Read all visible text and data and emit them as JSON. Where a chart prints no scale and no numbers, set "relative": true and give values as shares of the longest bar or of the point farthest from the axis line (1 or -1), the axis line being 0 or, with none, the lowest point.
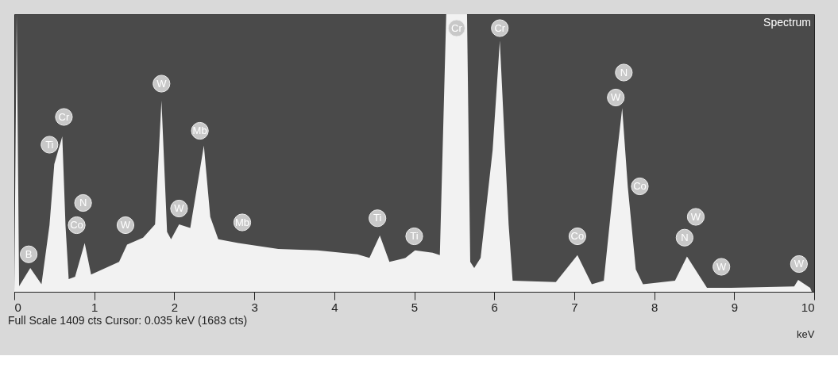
{
  "chart_data": {
    "type": "area",
    "relative": true,
    "xlabel": "keV",
    "xlim": [
      0,
      10
    ],
    "xticks": [
      0,
      1,
      2,
      3,
      4,
      5,
      6,
      7,
      8,
      9,
      10
    ],
    "grid": false,
    "x": [
      0.0,
      0.03,
      0.06,
      0.2,
      0.34,
      0.44,
      0.5,
      0.54,
      0.6,
      0.64,
      0.68,
      0.76,
      0.88,
      0.96,
      1.31,
      1.41,
      1.61,
      1.76,
      1.84,
      1.91,
      1.96,
      2.06,
      2.2,
      2.37,
      2.45,
      2.55,
      2.8,
      3.3,
      3.79,
      4.29,
      4.44,
      4.57,
      4.69,
      4.89,
      5.01,
      5.23,
      5.32,
      5.4,
      5.66,
      5.7,
      5.75,
      5.83,
      5.98,
      6.07,
      6.18,
      6.23,
      6.77,
      7.04,
      7.22,
      7.37,
      7.52,
      7.6,
      7.67,
      7.77,
      7.86,
      8.26,
      8.41,
      8.66,
      8.96,
      9.75,
      9.8,
      9.95,
      9.97
    ],
    "series": [
      {
        "color": "#f2f2f2",
        "values": [
          0,
          1,
          0.02,
          0.086,
          0.027,
          0.24,
          0.46,
          0.5,
          0.56,
          0.24,
          0.046,
          0.054,
          0.176,
          0.062,
          0.108,
          0.17,
          0.195,
          0.243,
          0.689,
          0.216,
          0.189,
          0.243,
          0.23,
          0.527,
          0.27,
          0.189,
          0.176,
          0.154,
          0.149,
          0.135,
          0.122,
          0.203,
          0.108,
          0.122,
          0.149,
          0.141,
          0.132,
          1,
          1,
          0.108,
          0.086,
          0.122,
          0.51,
          0.905,
          0.243,
          0.04,
          0.035,
          0.132,
          0.027,
          0.04,
          0.46,
          0.662,
          0.378,
          0.081,
          0.027,
          0.04,
          0.127,
          0.014,
          0.014,
          0.019,
          0.043,
          0.014,
          0
        ]
      }
    ],
    "annotations": [
      "Spectrum",
      "Full Scale  1409 cts  Cursor: 0.035 keV (1683 cts)",
      {
        "text": "B",
        "x": 0.18,
        "y": 0.135
      },
      {
        "text": "Ti",
        "x": 0.44,
        "y": 0.53
      },
      {
        "text": "Cr",
        "x": 0.62,
        "y": 0.63
      },
      {
        "text": "N",
        "x": 0.86,
        "y": 0.32
      },
      {
        "text": "Co",
        "x": 0.78,
        "y": 0.24
      },
      {
        "text": "W",
        "x": 1.39,
        "y": 0.24
      },
      {
        "text": "W",
        "x": 1.84,
        "y": 0.75
      },
      {
        "text": "W",
        "x": 2.06,
        "y": 0.3
      },
      {
        "text": "Mb",
        "x": 2.32,
        "y": 0.58
      },
      {
        "text": "Mb",
        "x": 2.85,
        "y": 0.25
      },
      {
        "text": "Ti",
        "x": 4.54,
        "y": 0.265
      },
      {
        "text": "Ti",
        "x": 5.0,
        "y": 0.2
      },
      {
        "text": "Cr",
        "x": 5.53,
        "y": 0.95
      },
      {
        "text": "Cr",
        "x": 6.07,
        "y": 0.95
      },
      {
        "text": "N",
        "x": 7.62,
        "y": 0.79
      },
      {
        "text": "W",
        "x": 7.52,
        "y": 0.7
      },
      {
        "text": "Co",
        "x": 7.82,
        "y": 0.38
      },
      {
        "text": "Co",
        "x": 7.04,
        "y": 0.2
      },
      {
        "text": "W",
        "x": 8.52,
        "y": 0.27
      },
      {
        "text": "N",
        "x": 8.38,
        "y": 0.195
      },
      {
        "text": "W",
        "x": 8.84,
        "y": 0.09
      },
      {
        "text": "W",
        "x": 9.81,
        "y": 0.1
      }
    ]
  }
}
